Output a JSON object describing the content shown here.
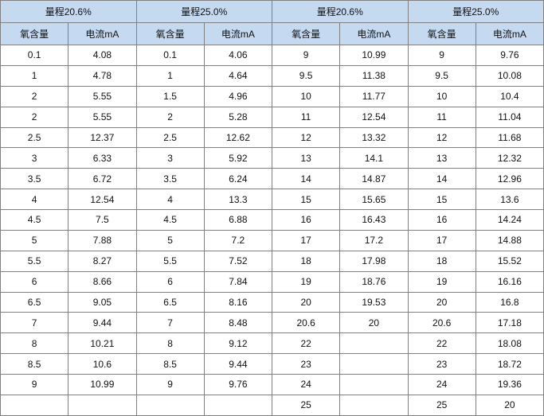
{
  "colors": {
    "header_bg": "#C5D9F1",
    "grid_line": "#808080",
    "text": "#111111",
    "cell_bg": "#FFFFFF"
  },
  "chart_data": {
    "type": "table",
    "header_groups": [
      {
        "label": "量程20.6%",
        "columns": [
          "氧含量",
          "电流mA"
        ]
      },
      {
        "label": "量程25.0%",
        "columns": [
          "氧含量",
          "电流mA"
        ]
      },
      {
        "label": "量程20.6%",
        "columns": [
          "氧含量",
          "电流mA"
        ]
      },
      {
        "label": "量程25.0%",
        "columns": [
          "氧含量",
          "电流mA"
        ]
      }
    ],
    "rows": [
      [
        "0.1",
        "4.08",
        "0.1",
        "4.06",
        "9",
        "10.99",
        "9",
        "9.76"
      ],
      [
        "1",
        "4.78",
        "1",
        "4.64",
        "9.5",
        "11.38",
        "9.5",
        "10.08"
      ],
      [
        "2",
        "5.55",
        "1.5",
        "4.96",
        "10",
        "11.77",
        "10",
        "10.4"
      ],
      [
        "2",
        "5.55",
        "2",
        "5.28",
        "11",
        "12.54",
        "11",
        "11.04"
      ],
      [
        "2.5",
        "12.37",
        "2.5",
        "12.62",
        "12",
        "13.32",
        "12",
        "11.68"
      ],
      [
        "3",
        "6.33",
        "3",
        "5.92",
        "13",
        "14.1",
        "13",
        "12.32"
      ],
      [
        "3.5",
        "6.72",
        "3.5",
        "6.24",
        "14",
        "14.87",
        "14",
        "12.96"
      ],
      [
        "4",
        "12.54",
        "4",
        "13.3",
        "15",
        "15.65",
        "15",
        "13.6"
      ],
      [
        "4.5",
        "7.5",
        "4.5",
        "6.88",
        "16",
        "16.43",
        "16",
        "14.24"
      ],
      [
        "5",
        "7.88",
        "5",
        "7.2",
        "17",
        "17.2",
        "17",
        "14.88"
      ],
      [
        "5.5",
        "8.27",
        "5.5",
        "7.52",
        "18",
        "17.98",
        "18",
        "15.52"
      ],
      [
        "6",
        "8.66",
        "6",
        "7.84",
        "19",
        "18.76",
        "19",
        "16.16"
      ],
      [
        "6.5",
        "9.05",
        "6.5",
        "8.16",
        "20",
        "19.53",
        "20",
        "16.8"
      ],
      [
        "7",
        "9.44",
        "7",
        "8.48",
        "20.6",
        "20",
        "20.6",
        "17.18"
      ],
      [
        "8",
        "10.21",
        "8",
        "9.12",
        "22",
        "",
        "22",
        "18.08"
      ],
      [
        "8.5",
        "10.6",
        "8.5",
        "9.44",
        "23",
        "",
        "23",
        "18.72"
      ],
      [
        "9",
        "10.99",
        "9",
        "9.76",
        "24",
        "",
        "24",
        "19.36"
      ],
      [
        "",
        "",
        "",
        "",
        "25",
        "",
        "25",
        "20"
      ]
    ]
  }
}
